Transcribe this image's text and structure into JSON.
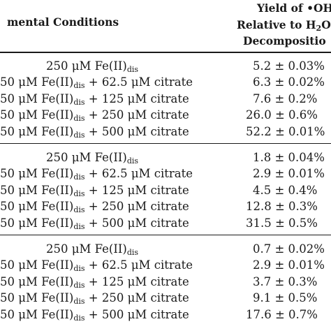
{
  "header": {
    "conditions": "mental Conditions",
    "yield_line1": "Yield of •OH",
    "yield_line2_pre": "Relative to H",
    "yield_line2_sub": "2",
    "yield_line2_post": "O",
    "yield_line3": "Decompositio"
  },
  "groups": [
    {
      "rows": [
        {
          "pre": "250 μM Fe(II)",
          "sub": "dis",
          "post": "",
          "value": "5.2 ± 0.03%"
        },
        {
          "pre": "50 μM Fe(II)",
          "sub": "dis",
          "post": " + 62.5 μM citrate",
          "value": "6.3 ± 0.02%"
        },
        {
          "pre": "50 μM Fe(II)",
          "sub": "dis",
          "post": " + 125 μM citrate",
          "value": "7.6 ± 0.2%"
        },
        {
          "pre": "50 μM Fe(II)",
          "sub": "dis",
          "post": " + 250 μM citrate",
          "value": "26.0 ± 0.6%"
        },
        {
          "pre": "50 μM Fe(II)",
          "sub": "dis",
          "post": " + 500 μM citrate",
          "value": "52.2 ± 0.01%"
        }
      ]
    },
    {
      "rows": [
        {
          "pre": "250 μM Fe(II)",
          "sub": "dis",
          "post": "",
          "value": "1.8 ± 0.04%"
        },
        {
          "pre": "50 μM Fe(II)",
          "sub": "dis",
          "post": " + 62.5 μM citrate",
          "value": "2.9 ± 0.01%"
        },
        {
          "pre": "50 μM Fe(II)",
          "sub": "dis",
          "post": " + 125 μM citrate",
          "value": "4.5 ± 0.4%"
        },
        {
          "pre": "50 μM Fe(II)",
          "sub": "dis",
          "post": " + 250 μM citrate",
          "value": "12.8 ± 0.3%"
        },
        {
          "pre": "50 μM Fe(II)",
          "sub": "dis",
          "post": " + 500 μM citrate",
          "value": "31.5 ± 0.5%"
        }
      ]
    },
    {
      "rows": [
        {
          "pre": "250 μM Fe(II)",
          "sub": "dis",
          "post": "",
          "value": "0.7 ± 0.02%"
        },
        {
          "pre": "50 μM Fe(II)",
          "sub": "dis",
          "post": " + 62.5 μM citrate",
          "value": "2.9 ± 0.01%"
        },
        {
          "pre": "50 μM Fe(II)",
          "sub": "dis",
          "post": " + 125 μM citrate",
          "value": "3.7 ± 0.3%"
        },
        {
          "pre": "50 μM Fe(II)",
          "sub": "dis",
          "post": " + 250 μM citrate",
          "value": "9.1 ± 0.5%"
        },
        {
          "pre": "50 μM Fe(II)",
          "sub": "dis",
          "post": " + 500 μM citrate",
          "value": "17.6 ± 0.7%"
        }
      ]
    }
  ]
}
